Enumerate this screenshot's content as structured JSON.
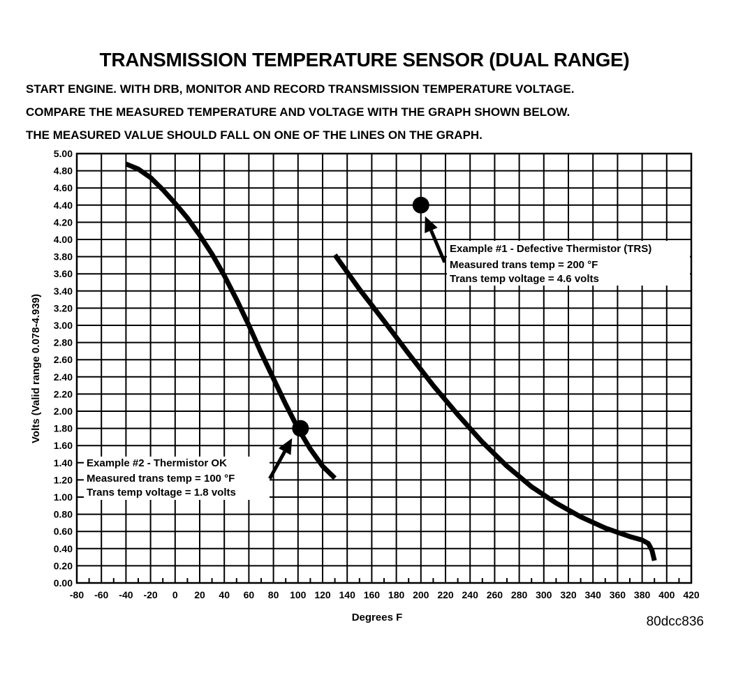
{
  "header": {
    "title": "TRANSMISSION TEMPERATURE SENSOR (DUAL RANGE)",
    "instructions": [
      "START ENGINE.  WITH DRB, MONITOR AND RECORD TRANSMISSION TEMPERATURE VOLTAGE.",
      "COMPARE THE MEASURED TEMPERATURE AND VOLTAGE WITH THE GRAPH SHOWN BELOW.",
      "THE MEASURED VALUE SHOULD FALL ON ONE OF THE LINES ON THE GRAPH."
    ]
  },
  "figure_code": "80dcc836",
  "chart_data": {
    "type": "line",
    "title": "TRANSMISSION TEMPERATURE SENSOR (DUAL RANGE)",
    "xlabel": "Degrees F",
    "ylabel": "Volts (Valid range 0.078-4.939)",
    "xlim": [
      -80,
      420
    ],
    "ylim": [
      0,
      5
    ],
    "x_ticks": [
      -80,
      -60,
      -40,
      -20,
      0,
      20,
      40,
      60,
      80,
      100,
      120,
      140,
      160,
      180,
      200,
      220,
      240,
      260,
      280,
      300,
      320,
      340,
      360,
      380,
      400,
      420
    ],
    "y_ticks": [
      "0.00",
      "0.20",
      "0.40",
      "0.60",
      "0.80",
      "1.00",
      "1.20",
      "1.40",
      "1.60",
      "1.80",
      "2.00",
      "2.20",
      "2.40",
      "2.60",
      "2.80",
      "3.00",
      "3.20",
      "3.40",
      "3.60",
      "3.80",
      "4.00",
      "4.20",
      "4.40",
      "4.60",
      "4.80",
      "5.00"
    ],
    "grid": true,
    "series": [
      {
        "points": [
          [
            -40,
            4.88
          ],
          [
            -30,
            4.82
          ],
          [
            -20,
            4.72
          ],
          [
            -10,
            4.58
          ],
          [
            0,
            4.42
          ],
          [
            10,
            4.25
          ],
          [
            20,
            4.05
          ],
          [
            30,
            3.83
          ],
          [
            40,
            3.58
          ],
          [
            50,
            3.3
          ],
          [
            60,
            3.0
          ],
          [
            70,
            2.68
          ],
          [
            80,
            2.38
          ],
          [
            90,
            2.08
          ],
          [
            100,
            1.8
          ],
          [
            110,
            1.56
          ],
          [
            120,
            1.36
          ],
          [
            130,
            1.22
          ]
        ]
      },
      {
        "points": [
          [
            130,
            3.82
          ],
          [
            150,
            3.42
          ],
          [
            170,
            3.05
          ],
          [
            190,
            2.67
          ],
          [
            210,
            2.3
          ],
          [
            230,
            1.96
          ],
          [
            250,
            1.64
          ],
          [
            270,
            1.36
          ],
          [
            290,
            1.12
          ],
          [
            310,
            0.93
          ],
          [
            330,
            0.77
          ],
          [
            350,
            0.64
          ],
          [
            370,
            0.54
          ],
          [
            380,
            0.5
          ],
          [
            385,
            0.46
          ],
          [
            388,
            0.38
          ],
          [
            390,
            0.26
          ]
        ]
      }
    ],
    "annotations": [
      {
        "point": [
          200,
          4.4
        ],
        "lines": [
          "Example #1 - Defective Thermistor (TRS)",
          "Measured trans temp = 200 °F",
          "Trans temp voltage = 4.6 volts"
        ]
      },
      {
        "point": [
          102,
          1.8
        ],
        "lines": [
          "Example #2 - Thermistor OK",
          "Measured trans temp = 100 °F",
          "Trans temp voltage = 1.8 volts"
        ]
      }
    ]
  }
}
